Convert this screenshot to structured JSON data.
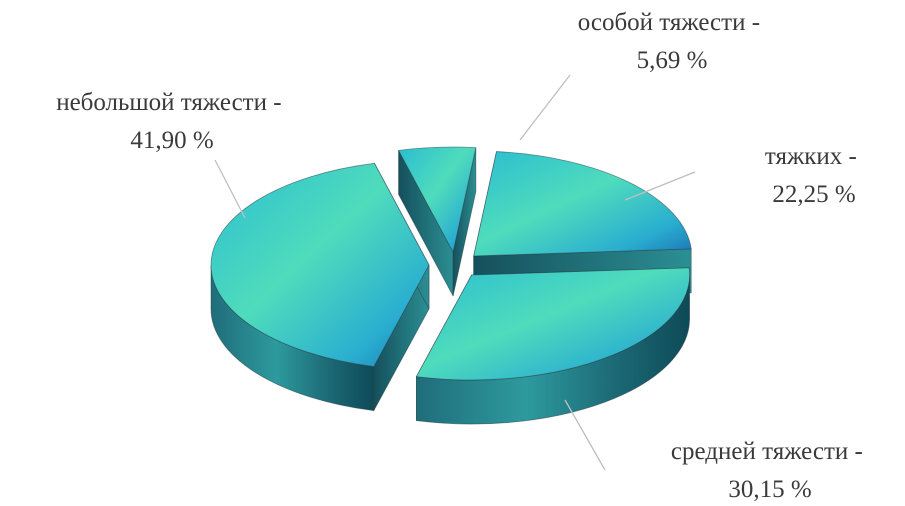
{
  "chart_data": {
    "type": "pie",
    "style": "3d-exploded",
    "title": "",
    "slices": [
      {
        "name": "тяжких",
        "value": 22.25,
        "label_line1": "тяжких -",
        "label_line2": "22,25 %"
      },
      {
        "name": "средней тяжести",
        "value": 30.15,
        "label_line1": "средней тяжести -",
        "label_line2": "30,15 %"
      },
      {
        "name": "небольшой тяжести",
        "value": 41.9,
        "label_line1": "небольшой тяжести -",
        "label_line2": "41,90 %"
      },
      {
        "name": "особой тяжести",
        "value": 5.69,
        "label_line1": "особой тяжести -",
        "label_line2": "5,69 %"
      }
    ],
    "legend": "none",
    "colors": {
      "top_light": "#4fdcbc",
      "top_mid": "#2bbdd1",
      "top_dark": "#1a74b6",
      "side_light": "#2d9a9e",
      "side_dark": "#0e4a57",
      "leader_line": "#bfbfbf",
      "label_text": "#3a3a3a"
    }
  }
}
